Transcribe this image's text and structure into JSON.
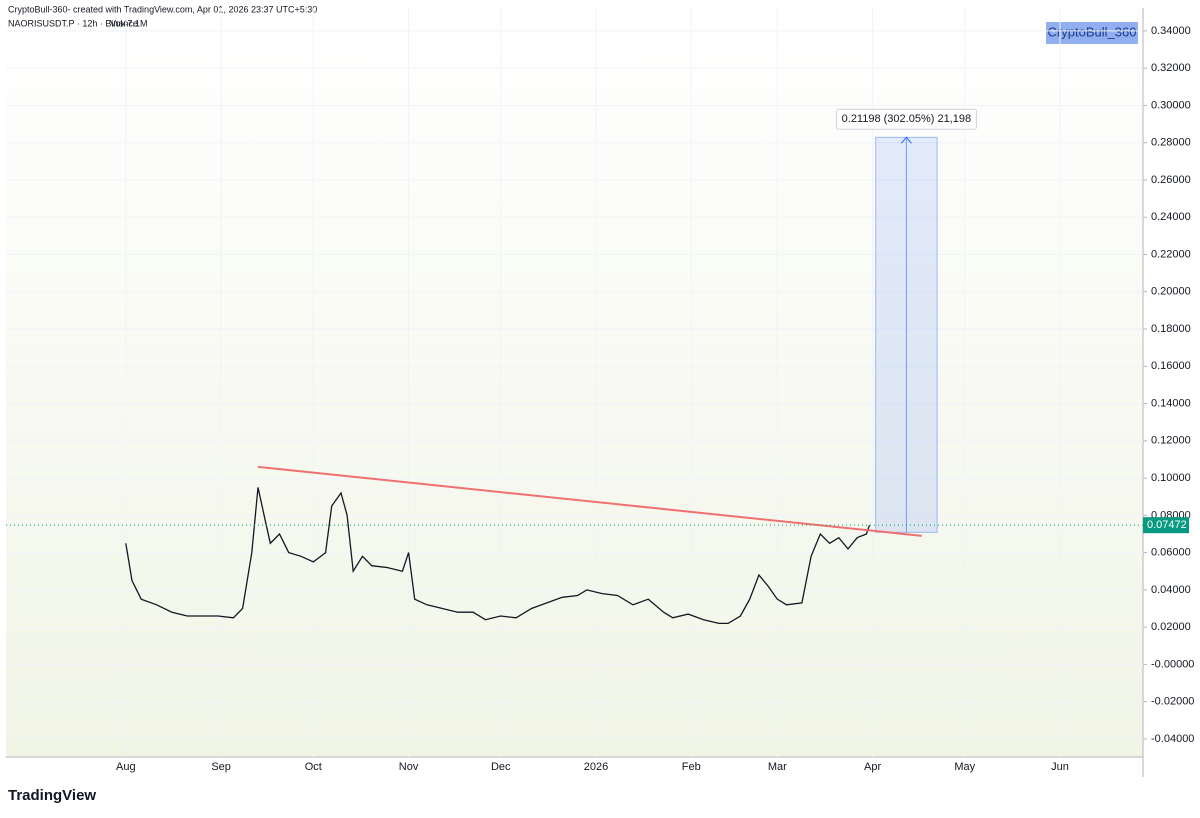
{
  "header": {
    "author_line": "CryptoBull-360- created with TradingView.com, Apr 01, 2026 23:37 UTC+5:30",
    "symbol_line": "NAORISUSDT.P · 12h · Binance",
    "volume": "Vol47.1M"
  },
  "watermark": "CryptoBull_360",
  "footer": "TradingView",
  "chart_data": {
    "type": "line",
    "xlim": [
      -39,
      331
    ],
    "ylim": [
      -0.0497,
      0.3523
    ],
    "xticks": [
      {
        "value": 0,
        "label": "Aug"
      },
      {
        "value": 31,
        "label": "Sep"
      },
      {
        "value": 61,
        "label": "Oct"
      },
      {
        "value": 92,
        "label": "Nov"
      },
      {
        "value": 122,
        "label": "Dec"
      },
      {
        "value": 153,
        "label": "2026"
      },
      {
        "value": 184,
        "label": "Feb"
      },
      {
        "value": 212,
        "label": "Mar"
      },
      {
        "value": 243,
        "label": "Apr"
      },
      {
        "value": 273,
        "label": "May"
      },
      {
        "value": 304,
        "label": "Jun"
      }
    ],
    "yticks": [
      {
        "value": 0.34,
        "label": "0.34000"
      },
      {
        "value": 0.32,
        "label": "0.32000"
      },
      {
        "value": 0.3,
        "label": "0.30000"
      },
      {
        "value": 0.28,
        "label": "0.28000"
      },
      {
        "value": 0.26,
        "label": "0.26000"
      },
      {
        "value": 0.24,
        "label": "0.24000"
      },
      {
        "value": 0.22,
        "label": "0.22000"
      },
      {
        "value": 0.2,
        "label": "0.20000"
      },
      {
        "value": 0.18,
        "label": "0.18000"
      },
      {
        "value": 0.16,
        "label": "0.16000"
      },
      {
        "value": 0.14,
        "label": "0.14000"
      },
      {
        "value": 0.12,
        "label": "0.12000"
      },
      {
        "value": 0.1,
        "label": "0.10000"
      },
      {
        "value": 0.08,
        "label": "0.08000"
      },
      {
        "value": 0.06,
        "label": "0.06000"
      },
      {
        "value": 0.04,
        "label": "0.04000"
      },
      {
        "value": 0.02,
        "label": "0.02000"
      },
      {
        "value": 0,
        "label": "-0.00000"
      },
      {
        "value": -0.02,
        "label": "-0.02000"
      },
      {
        "value": -0.04,
        "label": "-0.04000"
      }
    ],
    "series": [
      {
        "color": "#131722",
        "x": [
          0,
          2,
          5,
          10,
          15,
          20,
          25,
          30,
          35,
          38,
          41,
          43,
          45,
          47,
          50,
          53,
          57,
          61,
          65,
          67,
          70,
          72,
          74,
          77,
          80,
          85,
          90,
          92,
          94,
          98,
          103,
          108,
          113,
          117,
          122,
          127,
          132,
          137,
          142,
          147,
          150,
          155,
          160,
          165,
          170,
          175,
          178,
          183,
          188,
          193,
          196,
          200,
          203,
          206,
          209,
          212,
          215,
          220,
          223,
          226,
          229,
          232,
          235,
          238,
          241,
          242
        ],
        "values": [
          0.065,
          0.045,
          0.035,
          0.032,
          0.028,
          0.026,
          0.026,
          0.026,
          0.025,
          0.03,
          0.06,
          0.095,
          0.08,
          0.065,
          0.07,
          0.06,
          0.058,
          0.055,
          0.06,
          0.085,
          0.092,
          0.08,
          0.05,
          0.058,
          0.053,
          0.052,
          0.05,
          0.06,
          0.035,
          0.032,
          0.03,
          0.028,
          0.028,
          0.024,
          0.026,
          0.025,
          0.03,
          0.033,
          0.036,
          0.037,
          0.04,
          0.038,
          0.037,
          0.032,
          0.035,
          0.028,
          0.025,
          0.027,
          0.024,
          0.022,
          0.022,
          0.026,
          0.035,
          0.048,
          0.042,
          0.035,
          0.032,
          0.033,
          0.058,
          0.07,
          0.065,
          0.068,
          0.062,
          0.068,
          0.07,
          0.07472
        ]
      }
    ],
    "trendline": {
      "color": "#f07070",
      "x": [
        43,
        259
      ],
      "y": [
        0.106,
        0.069
      ]
    },
    "measure": {
      "color": "#2962ff",
      "x": [
        244,
        264
      ],
      "y": [
        0.0709,
        0.2829
      ],
      "label": "0.21198 (302.05%) 21,198"
    },
    "last_price": {
      "value": 0.07472,
      "label": "0.07472",
      "color": "#089981"
    }
  }
}
